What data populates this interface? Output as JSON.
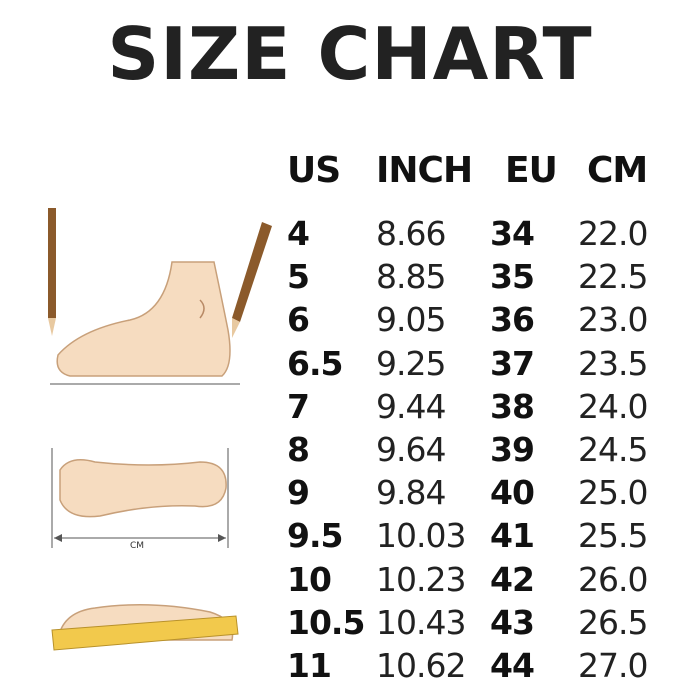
{
  "title": "SIZE CHART",
  "columns": [
    "US",
    "INCH",
    "EU",
    "CM"
  ],
  "rows": [
    [
      "4",
      "8.66",
      "34",
      "22.0"
    ],
    [
      "5",
      "8.85",
      "35",
      "22.5"
    ],
    [
      "6",
      "9.05",
      "36",
      "23.0"
    ],
    [
      "6.5",
      "9.25",
      "37",
      "23.5"
    ],
    [
      "7",
      "9.44",
      "38",
      "24.0"
    ],
    [
      "8",
      "9.64",
      "39",
      "24.5"
    ],
    [
      "9",
      "9.84",
      "40",
      "25.0"
    ],
    [
      "9.5",
      "10.03",
      "41",
      "25.5"
    ],
    [
      "10",
      "10.23",
      "42",
      "26.0"
    ],
    [
      "10.5",
      "10.43",
      "43",
      "26.5"
    ],
    [
      "11",
      "10.62",
      "44",
      "27.0"
    ]
  ],
  "illustration": {
    "length_label": "CM"
  },
  "colors": {
    "text": "#111111",
    "foot": "#f6dcc0",
    "foot_outline": "#c8a07a",
    "pencil": "#8b5a2b",
    "ruler": "#f2c94c"
  }
}
